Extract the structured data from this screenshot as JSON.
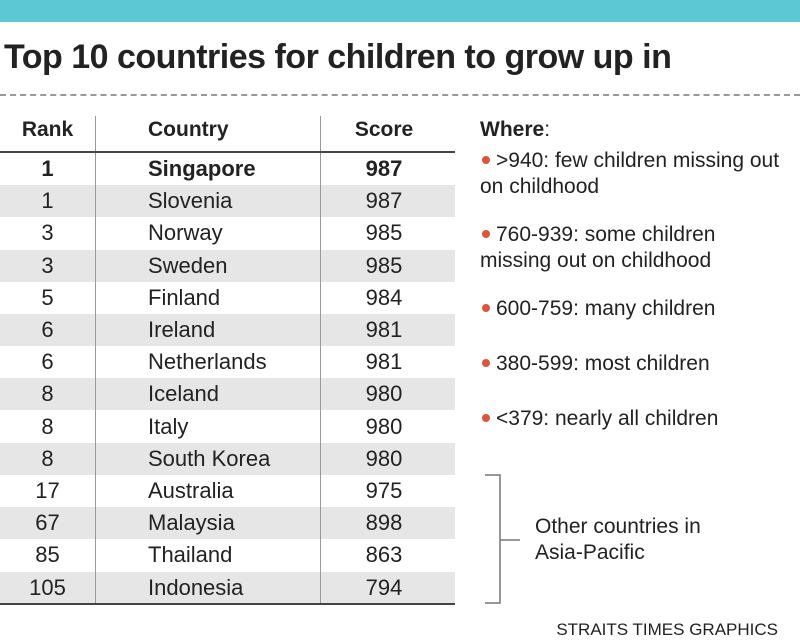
{
  "header": {
    "title": "Top 10 countries for children to grow up in"
  },
  "table": {
    "columns": [
      "Rank",
      "Country",
      "Score"
    ],
    "rows": [
      [
        1,
        "Singapore",
        987
      ],
      [
        1,
        "Slovenia",
        987
      ],
      [
        3,
        "Norway",
        985
      ],
      [
        3,
        "Sweden",
        985
      ],
      [
        5,
        "Finland",
        984
      ],
      [
        6,
        "Ireland",
        981
      ],
      [
        6,
        "Netherlands",
        981
      ],
      [
        8,
        "Iceland",
        980
      ],
      [
        8,
        "Italy",
        980
      ],
      [
        8,
        "South Korea",
        980
      ],
      [
        17,
        "Australia",
        975
      ],
      [
        67,
        "Malaysia",
        898
      ],
      [
        85,
        "Thailand",
        863
      ],
      [
        105,
        "Indonesia",
        794
      ]
    ]
  },
  "legend": {
    "title": "Where",
    "items": [
      ">940: few children missing out on childhood",
      "760-939: some children missing out on childhood",
      "600-759: many children",
      "380-599: most children",
      "<379: nearly all children"
    ]
  },
  "note": "Other countries in Asia-Pacific",
  "credit": "STRAITS TIMES GRAPHICS"
}
